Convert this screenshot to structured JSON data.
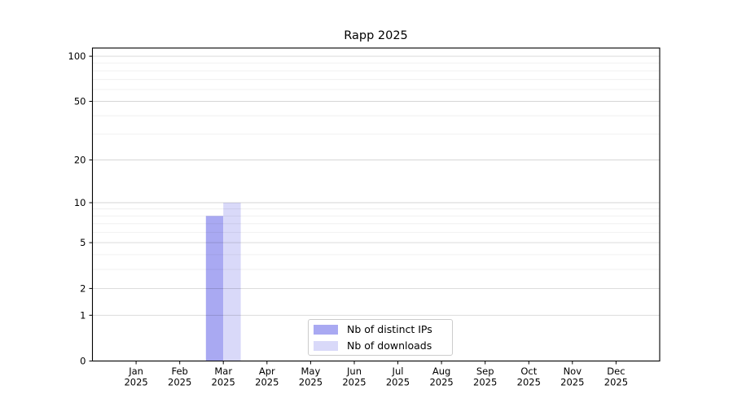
{
  "title": "Rapp 2025",
  "chart_data": {
    "type": "bar",
    "title": "Rapp 2025",
    "categories": [
      "Jan",
      "Feb",
      "Mar",
      "Apr",
      "May",
      "Jun",
      "Jul",
      "Aug",
      "Sep",
      "Oct",
      "Nov",
      "Dec"
    ],
    "year": "2025",
    "series": [
      {
        "name": "Nb of distinct IPs",
        "color": "#a9a9f2",
        "values": [
          0,
          0,
          8,
          0,
          0,
          0,
          0,
          0,
          0,
          0,
          0,
          0
        ]
      },
      {
        "name": "Nb of downloads",
        "color": "#d9d9f9",
        "values": [
          0,
          0,
          10,
          0,
          0,
          0,
          0,
          0,
          0,
          0,
          0,
          0
        ]
      }
    ],
    "xlabel": "",
    "ylabel": "",
    "y_axis": {
      "scale": "log1p",
      "major_ticks": [
        0,
        1,
        2,
        5,
        10,
        20,
        50,
        100
      ],
      "minor_gridlines": [
        3,
        4,
        6,
        7,
        8,
        9,
        30,
        40,
        60,
        70,
        80,
        90
      ],
      "ylim": [
        0,
        113.4
      ]
    },
    "grid": true,
    "legend_position": "lower center"
  },
  "colors": {
    "background": "#ffffff",
    "spine": "#000000",
    "grid_major": "rgba(0,0,0,0.16)",
    "grid_minor": "rgba(0,0,0,0.07)",
    "tick_label": "#000000"
  }
}
